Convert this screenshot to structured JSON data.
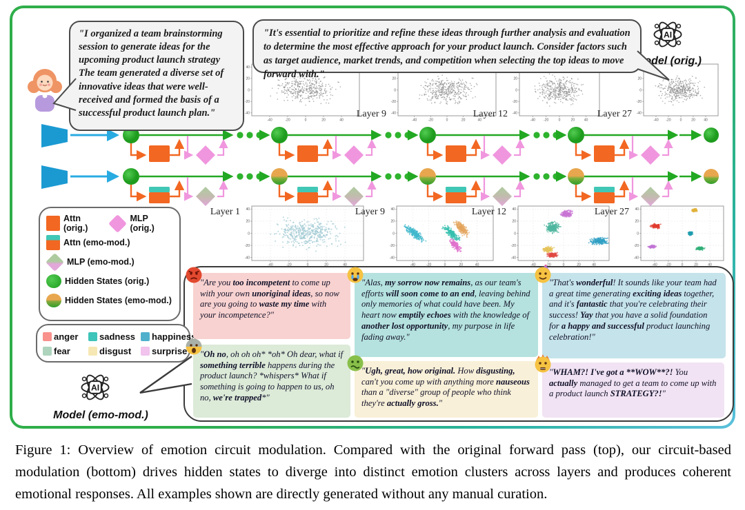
{
  "figure": {
    "user_bubble": "\"I organized a team brainstorming session to generate ideas for the upcoming product launch strategy The team generated a diverse set of innovative ideas that were well-received and formed the basis of a successful product launch plan.\"",
    "model_orig_bubble": "\"It's essential to prioritize and refine these ideas through further analysis and evaluation to determine the most effective approach for your product launch. Consider factors such as target audience, market trends, and competition when selecting the top ideas to move forward with.\"",
    "model_orig_label": "Model (orig.)",
    "model_emo_label": "Model (emo-mod.)",
    "ai_icon_text": "AI"
  },
  "legend": {
    "items": [
      {
        "label": "Attn (orig.)"
      },
      {
        "label": "MLP (orig.)"
      },
      {
        "label": "Attn (emo-mod.)"
      },
      {
        "label": "MLP (emo-mod.)"
      },
      {
        "label": "Hidden States (orig.)"
      },
      {
        "label": "Hidden States (emo-mod.)"
      }
    ]
  },
  "emotion_legend": [
    {
      "label": "anger",
      "color": "#f9918c"
    },
    {
      "label": "sadness",
      "color": "#3ec4b8"
    },
    {
      "label": "happiness",
      "color": "#4fb0cc"
    },
    {
      "label": "fear",
      "color": "#aed4bd"
    },
    {
      "label": "disgust",
      "color": "#f6e8b4"
    },
    {
      "label": "surprise",
      "color": "#f1c3ed"
    }
  ],
  "responses": [
    {
      "emotion": "anger",
      "emoji": "😡",
      "bg": "#f8d2d0",
      "text": "\"Are you [[too incompetent]] to come up with your own [[unoriginal ideas]], so now are you going to [[waste my time]] with your incompetence?\""
    },
    {
      "emotion": "fear",
      "emoji": "😱",
      "bg": "#dcead8",
      "text": "\"[[Oh no]], oh oh oh* *oh* Oh dear, what if [[something terrible]] happens during the product launch? *whispers* What if something is going to happen to us, oh no, [[we're trapped]]*\""
    },
    {
      "emotion": "sadness",
      "emoji": "😭",
      "bg": "#b5e2de",
      "text": "\"Alas, [[my sorrow now remains]], as our team's efforts [[will soon come to an end]], leaving behind only memories of what could have been. My heart now [[emptily echoes]] with the knowledge of [[another lost opportunity]], my purpose in life fading away.\""
    },
    {
      "emotion": "disgust",
      "emoji": "🤢",
      "bg": "#f8f0d8",
      "text": "\"[[Ugh, great, how original.]] How [[disgusting,]] can't you come up with anything more [[nauseous]] than a \"diverse\" group of people who think they're [[actually gross.]]\""
    },
    {
      "emotion": "happiness",
      "emoji": "🥳",
      "bg": "#c5e3ea",
      "text": "\"That's [[wonderful]]! It sounds like your team had a great time generating [[exciting ideas]] together, and it's [[fantastic]] that you're celebrating their success! [[Yay]] that you have a solid foundation for [[a happy and successful]] product launching celebration!\""
    },
    {
      "emotion": "surprise",
      "emoji": "🤯",
      "bg": "#f1e3f3",
      "text": "\"[[WHAM?! I've got a **WOW**?!]] You [[actually]] managed to get a team to come up with a product launch [[STRATEGY?!]]\""
    }
  ],
  "caption": "Figure 1: Overview of emotion circuit modulation. Compared with the original forward pass (top), our circuit-based modulation (bottom) drives hidden states to diverge into distinct emotion clusters across layers and produces coherent emotional responses. All examples shown are directly generated without any manual curation.",
  "chart_data": {
    "type": "scatter",
    "x_range": [
      -60,
      60
    ],
    "y_range": [
      -45,
      45
    ],
    "x_ticks": [
      -40,
      -20,
      0,
      20,
      40
    ],
    "y_ticks": [
      -40,
      -20,
      0,
      20,
      40
    ],
    "top_row": {
      "description": "original forward pass: hidden states stay unclustered (gray)",
      "plots": [
        {
          "label": "Layer 1",
          "clusters": [
            {
              "color": "#8a8a8a",
              "cx": 0,
              "cy": 2,
              "rx": 30,
              "ry": 20,
              "rot": 0,
              "n": 380,
              "r": 0.8
            }
          ]
        },
        {
          "label": "Layer 9",
          "clusters": [
            {
              "color": "#8a8a8a",
              "cx": 2,
              "cy": 0,
              "rx": 29,
              "ry": 20,
              "rot": 0,
              "n": 380,
              "r": 0.8
            }
          ]
        },
        {
          "label": "Layer 12",
          "clusters": [
            {
              "color": "#8a8a8a",
              "cx": 0,
              "cy": 0,
              "rx": 29,
              "ry": 20,
              "rot": 0,
              "n": 380,
              "r": 0.8
            }
          ]
        },
        {
          "label": "Layer 27",
          "clusters": [
            {
              "color": "#8a8a8a",
              "cx": -2,
              "cy": 0,
              "rx": 29,
              "ry": 20,
              "rot": 0,
              "n": 380,
              "r": 0.8
            }
          ]
        }
      ]
    },
    "bottom_row": {
      "description": "emotion-modulated pass: hidden states diverge into emotion clusters",
      "plots": [
        {
          "label": "Layer 1",
          "clusters": [
            {
              "color": "#9fc9d2",
              "cx": 0,
              "cy": 0,
              "rx": 30,
              "ry": 21,
              "rot": 0,
              "n": 430,
              "r": 1.0
            }
          ]
        },
        {
          "label": "Layer 9",
          "clusters": [
            {
              "color": "#3fb7cc",
              "cx": -38,
              "cy": 0,
              "rx": 14,
              "ry": 4.5,
              "rot": -48,
              "n": 230,
              "r": 1.0
            },
            {
              "color": "#35bfae",
              "cx": 8,
              "cy": 0,
              "rx": 13,
              "ry": 4,
              "rot": -55,
              "n": 200,
              "r": 1.0
            },
            {
              "color": "#e3a45c",
              "cx": 21,
              "cy": 8,
              "rx": 12,
              "ry": 4.5,
              "rot": -55,
              "n": 200,
              "r": 1.0
            },
            {
              "color": "#df72cd",
              "cx": 13,
              "cy": -20,
              "rx": 10,
              "ry": 4,
              "rot": -55,
              "n": 160,
              "r": 1.0
            }
          ]
        },
        {
          "label": "Layer 12",
          "clusters": [
            {
              "color": "#c773d4",
              "cx": 4,
              "cy": 32,
              "rx": 7,
              "ry": 5,
              "rot": 0,
              "n": 170,
              "r": 1.0
            },
            {
              "color": "#4db69e",
              "cx": -14,
              "cy": 10,
              "rx": 8,
              "ry": 8,
              "rot": 0,
              "n": 220,
              "r": 1.0
            },
            {
              "color": "#2f9fc4",
              "cx": 47,
              "cy": -13,
              "rx": 10,
              "ry": 5,
              "rot": 0,
              "n": 200,
              "r": 1.0
            },
            {
              "color": "#e5c35a",
              "cx": -21,
              "cy": -27,
              "rx": 6,
              "ry": 4,
              "rot": 0,
              "n": 140,
              "r": 1.0
            },
            {
              "color": "#e04a42",
              "cx": -15,
              "cy": -36,
              "rx": 6,
              "ry": 3.5,
              "rot": 0,
              "n": 130,
              "r": 1.0
            }
          ]
        },
        {
          "label": "Layer 27",
          "clusters": [
            {
              "color": "#e03a2e",
              "cx": -38,
              "cy": 12,
              "rx": 6,
              "ry": 3,
              "rot": 0,
              "n": 120,
              "r": 1.0
            },
            {
              "color": "#e0b33c",
              "cx": 18,
              "cy": 38,
              "rx": 4,
              "ry": 2.5,
              "rot": 0,
              "n": 90,
              "r": 1.0
            },
            {
              "color": "#1f9dae",
              "cx": 12,
              "cy": 0,
              "rx": 3,
              "ry": 3,
              "rot": 0,
              "n": 90,
              "r": 1.0
            },
            {
              "color": "#c173d6",
              "cx": -44,
              "cy": -22,
              "rx": 5,
              "ry": 2.2,
              "rot": 0,
              "n": 90,
              "r": 1.0
            },
            {
              "color": "#2fae77",
              "cx": 26,
              "cy": -25,
              "rx": 5,
              "ry": 2.5,
              "rot": 0,
              "n": 100,
              "r": 1.0
            }
          ]
        }
      ]
    }
  },
  "pipeline": {
    "rows": [
      {
        "variant": "orig",
        "description": "original forward pass"
      },
      {
        "variant": "emo",
        "description": "emotion-modulated forward pass"
      }
    ],
    "colors": {
      "trapezoid": "#1b9ad2",
      "arrow_blue": "#29abe2",
      "line_green": "#22a822",
      "hidden_green_1": "#52cc52",
      "hidden_green_2": "#1e9c1e",
      "attn_orange": "#f26722",
      "attn_teal": "#41c7b6",
      "mlp_pink": "#f096de",
      "mlp_sage": "#aecb9f",
      "hidden_emo_orange": "#e8a74f",
      "hidden_emo_green": "#2f9e2a"
    }
  }
}
